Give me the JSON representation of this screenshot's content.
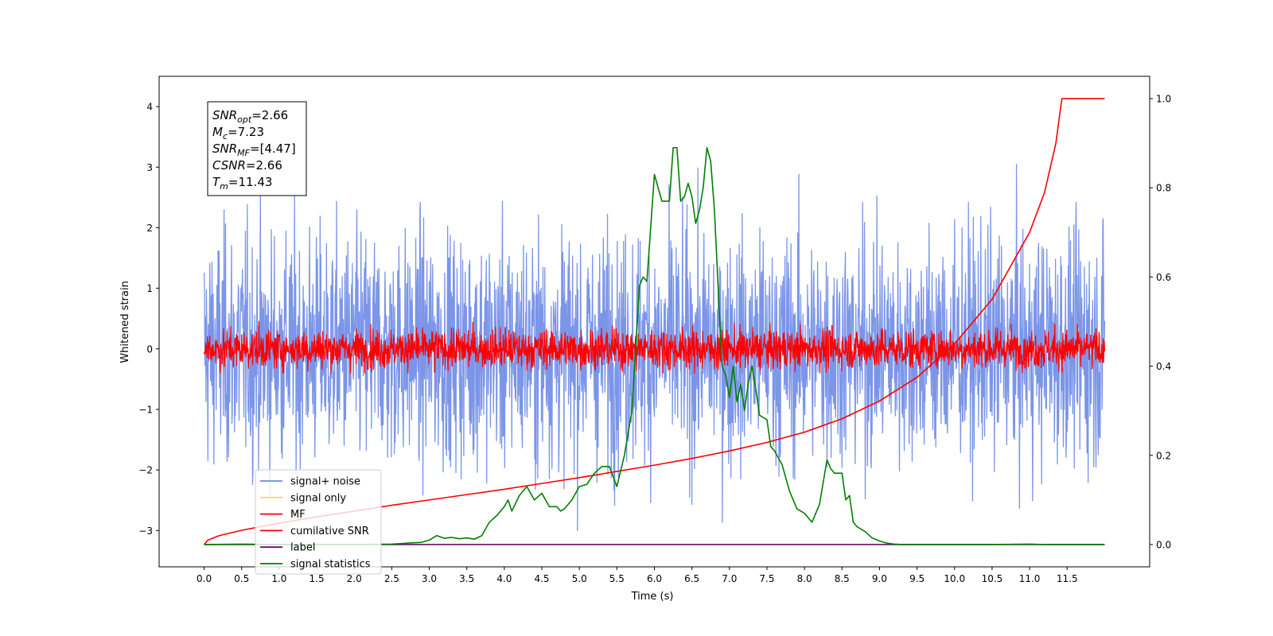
{
  "chart_data": {
    "type": "line",
    "title": "",
    "xlabel": "Time (s)",
    "ylabel": "Whitened strain",
    "xlim": [
      -0.6,
      12.6
    ],
    "ylim": [
      -3.6,
      4.5
    ],
    "y2lim": [
      -0.05,
      1.05
    ],
    "x_ticks": [
      "0.0",
      "0.5",
      "1.0",
      "1.5",
      "2.0",
      "2.5",
      "3.0",
      "3.5",
      "4.0",
      "4.5",
      "5.0",
      "5.5",
      "6.0",
      "6.5",
      "7.0",
      "7.5",
      "8.0",
      "8.5",
      "9.0",
      "9.5",
      "10.0",
      "10.5",
      "11.0",
      "11.5"
    ],
    "y_ticks": [
      "4",
      "3",
      "2",
      "1",
      "0",
      "−1",
      "−2",
      "−3"
    ],
    "y2_ticks": [
      "1.0",
      "0.8",
      "0.6",
      "0.4",
      "0.2",
      "0.0"
    ],
    "grid": false,
    "legend_position": "lower-left",
    "annotation": {
      "lines": [
        {
          "var": "SNR",
          "sub": "opt",
          "value": "=2.66"
        },
        {
          "var": "M",
          "sub": "c",
          "value": "=7.23"
        },
        {
          "var": "SNR",
          "sub": "MF",
          "value": "=[4.47]"
        },
        {
          "var": "CSNR",
          "sub": "",
          "value": "=2.66"
        },
        {
          "var": "T",
          "sub": "m",
          "value": "=11.43"
        }
      ]
    },
    "series": [
      {
        "name": "signal+ noise",
        "color": "#6d8ae6",
        "axis": "left",
        "kind": "noise",
        "x_range": [
          0.0,
          12.0
        ],
        "amplitude_std": 0.95,
        "peak_range": [
          -3.1,
          4.15
        ]
      },
      {
        "name": "signal only",
        "color": "#ffd27a",
        "axis": "left",
        "kind": "empty"
      },
      {
        "name": "MF",
        "color": "#ff0000",
        "axis": "left",
        "kind": "noise",
        "x_range": [
          0.0,
          12.0
        ],
        "amplitude_std": 0.16,
        "peak_range": [
          -0.4,
          1.0
        ]
      },
      {
        "name": "cumilative SNR",
        "color": "#ff0000",
        "axis": "right",
        "x": [
          0.0,
          0.05,
          0.2,
          0.5,
          1.0,
          1.5,
          2.0,
          2.5,
          3.0,
          3.5,
          4.0,
          4.5,
          5.0,
          5.5,
          6.0,
          6.5,
          7.0,
          7.5,
          8.0,
          8.5,
          9.0,
          9.5,
          10.0,
          10.5,
          11.0,
          11.2,
          11.35,
          11.43,
          11.45,
          12.0
        ],
        "y": [
          0.0,
          0.01,
          0.02,
          0.032,
          0.048,
          0.062,
          0.075,
          0.088,
          0.1,
          0.112,
          0.124,
          0.137,
          0.15,
          0.164,
          0.178,
          0.193,
          0.21,
          0.229,
          0.252,
          0.282,
          0.322,
          0.375,
          0.45,
          0.55,
          0.7,
          0.79,
          0.9,
          1.0,
          1.0,
          1.0
        ]
      },
      {
        "name": "label",
        "color": "#6a0a6a",
        "axis": "right",
        "x": [
          0.0,
          12.0
        ],
        "y": [
          0.0,
          0.0
        ]
      },
      {
        "name": "signal statistics",
        "color": "#008000",
        "axis": "right",
        "x": [
          0.0,
          0.5,
          1.0,
          1.5,
          2.0,
          2.5,
          2.9,
          3.0,
          3.1,
          3.2,
          3.3,
          3.4,
          3.5,
          3.6,
          3.7,
          3.8,
          3.9,
          4.0,
          4.05,
          4.1,
          4.2,
          4.3,
          4.4,
          4.5,
          4.6,
          4.7,
          4.75,
          4.8,
          4.9,
          5.0,
          5.1,
          5.2,
          5.3,
          5.4,
          5.5,
          5.6,
          5.7,
          5.8,
          5.85,
          5.9,
          6.0,
          6.05,
          6.1,
          6.15,
          6.2,
          6.25,
          6.3,
          6.35,
          6.4,
          6.45,
          6.5,
          6.55,
          6.6,
          6.65,
          6.7,
          6.75,
          6.8,
          6.9,
          6.95,
          7.0,
          7.05,
          7.1,
          7.15,
          7.2,
          7.25,
          7.3,
          7.35,
          7.4,
          7.5,
          7.55,
          7.6,
          7.7,
          7.8,
          7.9,
          8.0,
          8.1,
          8.15,
          8.2,
          8.3,
          8.35,
          8.4,
          8.5,
          8.55,
          8.6,
          8.65,
          8.7,
          8.8,
          8.9,
          9.0,
          9.1,
          9.2,
          9.3,
          9.5,
          10.0,
          10.5,
          11.0,
          11.2,
          11.5,
          12.0
        ],
        "y": [
          0.0,
          0.001,
          0.0,
          0.0,
          0.0,
          0.001,
          0.005,
          0.01,
          0.02,
          0.014,
          0.016,
          0.013,
          0.015,
          0.012,
          0.02,
          0.05,
          0.065,
          0.085,
          0.1,
          0.075,
          0.11,
          0.13,
          0.1,
          0.115,
          0.085,
          0.085,
          0.075,
          0.08,
          0.1,
          0.13,
          0.135,
          0.16,
          0.175,
          0.175,
          0.13,
          0.2,
          0.3,
          0.58,
          0.6,
          0.59,
          0.83,
          0.8,
          0.77,
          0.77,
          0.77,
          0.89,
          0.89,
          0.77,
          0.78,
          0.81,
          0.78,
          0.72,
          0.75,
          0.8,
          0.89,
          0.86,
          0.75,
          0.4,
          0.38,
          0.33,
          0.4,
          0.32,
          0.36,
          0.3,
          0.36,
          0.4,
          0.35,
          0.29,
          0.28,
          0.22,
          0.21,
          0.18,
          0.12,
          0.08,
          0.07,
          0.05,
          0.07,
          0.09,
          0.19,
          0.17,
          0.16,
          0.16,
          0.1,
          0.11,
          0.05,
          0.04,
          0.03,
          0.015,
          0.008,
          0.003,
          0.001,
          0.0,
          0.0,
          0.0,
          0.0,
          0.001,
          0.0,
          0.0,
          0.0
        ]
      }
    ]
  }
}
